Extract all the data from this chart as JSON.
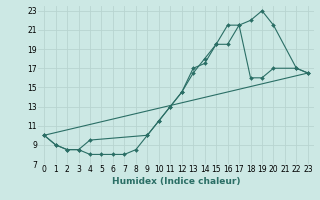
{
  "xlabel": "Humidex (Indice chaleur)",
  "ylabel": "",
  "bg_color": "#cce8e4",
  "grid_color": "#b8d4d0",
  "line_color": "#2a6e65",
  "xlim": [
    -0.5,
    23.5
  ],
  "ylim": [
    7,
    23.5
  ],
  "xticks": [
    0,
    1,
    2,
    3,
    4,
    5,
    6,
    7,
    8,
    9,
    10,
    11,
    12,
    13,
    14,
    15,
    16,
    17,
    18,
    19,
    20,
    21,
    22,
    23
  ],
  "yticks": [
    7,
    9,
    11,
    13,
    15,
    17,
    19,
    21,
    23
  ],
  "line1_x": [
    0,
    1,
    2,
    3,
    4,
    5,
    6,
    7,
    8,
    9,
    10,
    11,
    12,
    13,
    14,
    15,
    16,
    17,
    18,
    19,
    20,
    22,
    23
  ],
  "line1_y": [
    10,
    9,
    8.5,
    8.5,
    8.0,
    8.0,
    8.0,
    8.0,
    8.5,
    10,
    11.5,
    13,
    14.5,
    17,
    17.5,
    19.5,
    19.5,
    21.5,
    16,
    16,
    17,
    17,
    16.5
  ],
  "line2_x": [
    0,
    1,
    2,
    3,
    4,
    9,
    10,
    11,
    12,
    13,
    14,
    15,
    16,
    17,
    18,
    19,
    20,
    22,
    23
  ],
  "line2_y": [
    10,
    9,
    8.5,
    8.5,
    9.5,
    10,
    11.5,
    13,
    14.5,
    16.5,
    18,
    19.5,
    21.5,
    21.5,
    22,
    23,
    21.5,
    17,
    16.5
  ],
  "line3_x": [
    0,
    23
  ],
  "line3_y": [
    10,
    16.5
  ]
}
